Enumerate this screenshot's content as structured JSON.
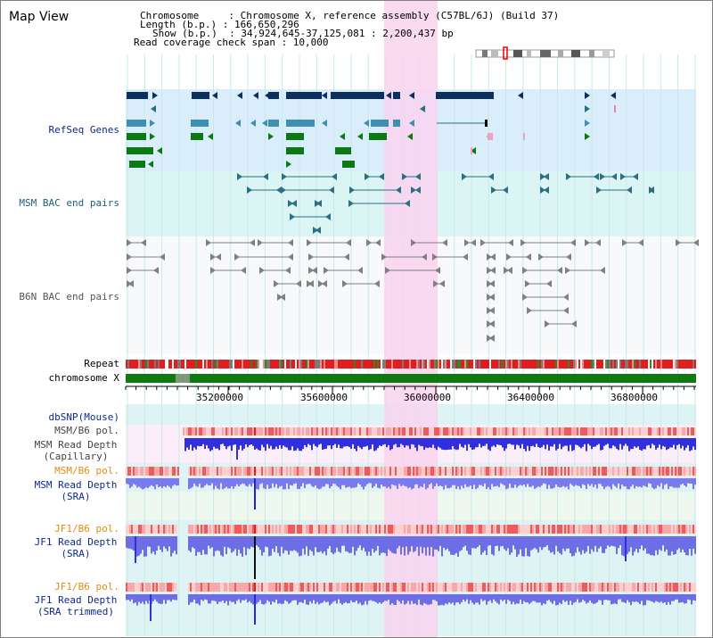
{
  "title": "Map View",
  "header": {
    "chromosome": "Chromosome     : Chromosome X, reference assembly (C57BL/6J) (Build 37)",
    "length": "Length (b.p.) : 166,650,296",
    "show": "Show (b.p.)  : 34,924,645-37,125,081 : 2,200,437 bp",
    "span": "Read coverage check span : 10,000"
  },
  "tracks": {
    "refseq": "RefSeq Genes",
    "msm_bac": "MSM BAC end pairs",
    "b6n_bac": "B6N BAC end pairs",
    "repeat": "Repeat",
    "chrom": "chromosome X",
    "dbsnp": "dbSNP(Mouse)",
    "msm_pol1": "MSM/B6 pol.",
    "msm_depth_cap_1": "MSM Read Depth",
    "msm_depth_cap_2": "(Capillary)",
    "msm_pol2": "MSM/B6 pol.",
    "msm_depth_sra_1": "MSM Read Depth",
    "msm_depth_sra_2": "(SRA)",
    "jf1_pol1": "JF1/B6 pol.",
    "jf1_depth_1": "JF1 Read Depth",
    "jf1_depth_2": "(SRA)",
    "jf1_pol2": "JF1/B6 pol.",
    "jf1_trim_1": "JF1 Read Depth",
    "jf1_trim_2": "(SRA trimmed)"
  },
  "axis": {
    "ticks": [
      "35200000",
      "35600000",
      "36000000",
      "36400000",
      "36800000"
    ]
  },
  "colors": {
    "highlight": "#f9d3ef",
    "refseq_bg": "#d9eefa",
    "bac_bg": "#dbf5f5",
    "dark_navy": "#0d2f60",
    "mid_blue": "#3e8fb0",
    "green": "#0c7a12",
    "teal": "#2a6f84",
    "gray": "#808080",
    "red": "#e21d1d",
    "depth_blue": "#2f2fe0",
    "depth_light": "#8c8cf0",
    "label_navy": "#0b2a8a",
    "label_orange": "#e48a10"
  }
}
